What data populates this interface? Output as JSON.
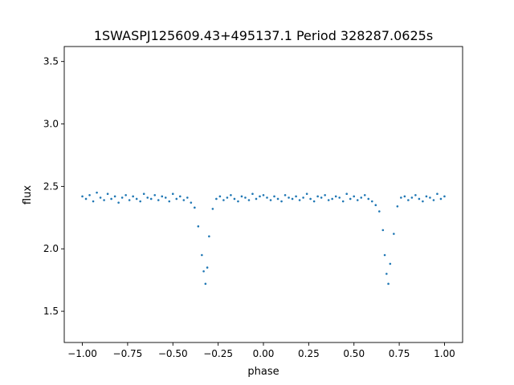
{
  "chart_data": {
    "type": "scatter",
    "title": "1SWASPJ125609.43+495137.1 Period 328287.0625s",
    "xlabel": "phase",
    "ylabel": "flux",
    "xlim": [
      -1.1,
      1.1
    ],
    "ylim": [
      1.25,
      3.62
    ],
    "xticks": [
      -1.0,
      -0.75,
      -0.5,
      -0.25,
      0.0,
      0.25,
      0.5,
      0.75,
      1.0
    ],
    "xtick_labels": [
      "−1.00",
      "−0.75",
      "−0.50",
      "−0.25",
      "0.00",
      "0.25",
      "0.50",
      "0.75",
      "1.00"
    ],
    "yticks": [
      1.5,
      2.0,
      2.5,
      3.0,
      3.5
    ],
    "ytick_labels": [
      "1.5",
      "2.0",
      "2.5",
      "3.0",
      "3.5"
    ],
    "grid": false,
    "marker_color": "#1f77b4",
    "series": [
      {
        "x": [
          -1.0,
          -0.98,
          -0.96,
          -0.94,
          -0.92,
          -0.9,
          -0.88,
          -0.86,
          -0.84,
          -0.82,
          -0.8,
          -0.78,
          -0.76,
          -0.74,
          -0.72,
          -0.7,
          -0.68,
          -0.66,
          -0.64,
          -0.62,
          -0.6,
          -0.58,
          -0.56,
          -0.54,
          -0.52,
          -0.5,
          -0.48,
          -0.46,
          -0.44,
          -0.42,
          -0.4,
          -0.38,
          -0.36,
          -0.34,
          -0.33,
          -0.32,
          -0.31,
          -0.3,
          -0.28,
          -0.26,
          -0.24,
          -0.22,
          -0.2,
          -0.18,
          -0.16,
          -0.14,
          -0.12,
          -0.1,
          -0.08,
          -0.06,
          -0.04,
          -0.02,
          0.0,
          0.02,
          0.04,
          0.06,
          0.08,
          0.1,
          0.12,
          0.14,
          0.16,
          0.18,
          0.2,
          0.22,
          0.24,
          0.26,
          0.28,
          0.3,
          0.32,
          0.34,
          0.36,
          0.38,
          0.4,
          0.42,
          0.44,
          0.46,
          0.48,
          0.5,
          0.52,
          0.54,
          0.56,
          0.58,
          0.6,
          0.62,
          0.64,
          0.66,
          0.67,
          0.68,
          0.69,
          0.7,
          0.72,
          0.74,
          0.76,
          0.78,
          0.8,
          0.82,
          0.84,
          0.86,
          0.88,
          0.9,
          0.92,
          0.94,
          0.96,
          0.98,
          1.0
        ],
        "y": [
          2.42,
          2.4,
          2.43,
          2.38,
          2.45,
          2.41,
          2.39,
          2.44,
          2.4,
          2.42,
          2.37,
          2.41,
          2.43,
          2.39,
          2.42,
          2.4,
          2.38,
          2.44,
          2.41,
          2.4,
          2.43,
          2.39,
          2.42,
          2.41,
          2.38,
          2.44,
          2.4,
          2.42,
          2.39,
          2.41,
          2.37,
          2.33,
          2.18,
          1.95,
          1.82,
          1.72,
          1.85,
          2.1,
          2.32,
          2.4,
          2.42,
          2.39,
          2.41,
          2.43,
          2.4,
          2.38,
          2.42,
          2.41,
          2.39,
          2.44,
          2.4,
          2.42,
          2.43,
          2.41,
          2.39,
          2.42,
          2.4,
          2.38,
          2.43,
          2.41,
          2.4,
          2.42,
          2.39,
          2.41,
          2.44,
          2.4,
          2.38,
          2.42,
          2.41,
          2.43,
          2.39,
          2.4,
          2.42,
          2.41,
          2.38,
          2.44,
          2.4,
          2.42,
          2.39,
          2.41,
          2.43,
          2.4,
          2.38,
          2.35,
          2.3,
          2.15,
          1.95,
          1.8,
          1.72,
          1.88,
          2.12,
          2.34,
          2.41,
          2.42,
          2.39,
          2.41,
          2.43,
          2.4,
          2.38,
          2.42,
          2.41,
          2.39,
          2.44,
          2.4,
          2.42
        ]
      }
    ]
  }
}
